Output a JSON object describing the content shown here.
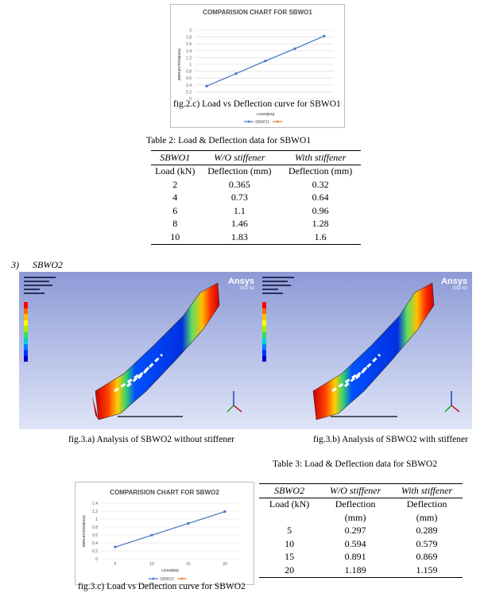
{
  "chart1": {
    "caption": "fig.2.c) Load vs Deflection curve for SBWO1",
    "legend": [
      "SBWO1",
      ""
    ],
    "colors": {
      "series1": "#4472c4",
      "series2": "#ed7d31"
    },
    "chart_data": {
      "type": "line",
      "title": "COMPARISION CHART FOR SBWO1",
      "xlabel": "LOAD(KN)",
      "ylabel": "DEFLECTION(mm)",
      "ylim": [
        0,
        2
      ],
      "y_ticks": [
        "0",
        "0.2",
        "0.4",
        "0.6",
        "0.8",
        "1",
        "1.2",
        "1.4",
        "1.6",
        "1.8",
        "2"
      ],
      "x": [
        2,
        4,
        6,
        8,
        10
      ],
      "series": [
        {
          "name": "SBWO1",
          "values": [
            0.365,
            0.73,
            1.1,
            1.46,
            1.83
          ]
        }
      ],
      "grid": true,
      "legend_position": "bottom"
    }
  },
  "table2": {
    "title": "Table 2: Load & Deflection data for SBWO1",
    "headers": [
      "SBWO1",
      "W/O stiffener",
      "With stiffener"
    ],
    "subheaders": [
      "Load (kN)",
      "Deflection (mm)",
      "Deflection (mm)"
    ],
    "rows": [
      [
        "2",
        "0.365",
        "0.32"
      ],
      [
        "4",
        "0.73",
        "0.64"
      ],
      [
        "6",
        "1.1",
        "0.96"
      ],
      [
        "8",
        "1.46",
        "1.28"
      ],
      [
        "10",
        "1.83",
        "1.6"
      ]
    ]
  },
  "section": {
    "number": "3)",
    "title": "SBWO2"
  },
  "sim_images": [
    {
      "caption": "fig.3.a) Analysis of SBWO2 without stiffener",
      "logo": "Ansys"
    },
    {
      "caption": "fig.3.b) Analysis of SBWO2 with stiffener",
      "logo": "Ansys"
    }
  ],
  "legend_colors": [
    "#ff0000",
    "#ff6a00",
    "#ffc000",
    "#ffff00",
    "#9ef000",
    "#30e060",
    "#00d0d0",
    "#0080ff",
    "#0030ff",
    "#0000c8"
  ],
  "table3": {
    "title": "Table 3: Load & Deflection data for SBWO2",
    "headers": [
      "SBWO2",
      "W/O stiffener",
      "With stiffener"
    ],
    "subheaders": [
      "Load (kN)",
      "Deflection",
      "Deflection"
    ],
    "subheaders2": [
      "",
      "(mm)",
      "(mm)"
    ],
    "rows": [
      [
        "5",
        "0.297",
        "0.289"
      ],
      [
        "10",
        "0.594",
        "0.579"
      ],
      [
        "15",
        "0.891",
        "0.869"
      ],
      [
        "20",
        "1.189",
        "1.159"
      ]
    ]
  },
  "chart2": {
    "caption": "fig.3.c) Load vs Deflection curve for SBWO2",
    "legend": [
      "SBWO2",
      ""
    ],
    "colors": {
      "series1": "#4472c4",
      "series2": "#ed7d31"
    },
    "chart_data": {
      "type": "line",
      "title": "COMPARISION CHART FOR SBWO2",
      "xlabel": "LOAD(kN)",
      "ylabel": "DEFLECTION(mm)",
      "ylim": [
        0,
        1.4
      ],
      "y_ticks": [
        "0",
        "0.2",
        "0.4",
        "0.6",
        "0.8",
        "1",
        "1.2",
        "1.4"
      ],
      "x_ticks": [
        "5",
        "10",
        "15",
        "20"
      ],
      "x": [
        5,
        10,
        15,
        20
      ],
      "series": [
        {
          "name": "SBWO2",
          "values": [
            0.297,
            0.594,
            0.891,
            1.189
          ]
        }
      ],
      "grid": true,
      "legend_position": "bottom"
    }
  }
}
